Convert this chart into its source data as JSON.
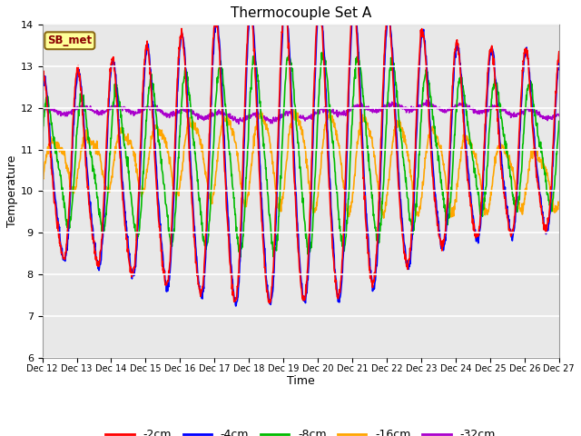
{
  "title": "Thermocouple Set A",
  "xlabel": "Time",
  "ylabel": "Temperature",
  "ylim": [
    6.0,
    14.0
  ],
  "yticks": [
    6.0,
    7.0,
    8.0,
    9.0,
    10.0,
    11.0,
    12.0,
    13.0,
    14.0
  ],
  "xlim": [
    0,
    360
  ],
  "background_color": "#e8e8e8",
  "fig_background": "#ffffff",
  "series": {
    "-2cm": {
      "color": "#ff0000",
      "lw": 1.2
    },
    "-4cm": {
      "color": "#0000ff",
      "lw": 1.2
    },
    "-8cm": {
      "color": "#00bb00",
      "lw": 1.2
    },
    "-16cm": {
      "color": "#ffa500",
      "lw": 1.2
    },
    "-32cm": {
      "color": "#aa00cc",
      "lw": 1.2
    }
  },
  "annotation_text": "SB_met",
  "annotation_color": "#8b0000",
  "annotation_bg": "#ffff99",
  "annotation_border": "#8b6914",
  "xtick_labels": [
    "Dec 12",
    "Dec 13",
    "Dec 14",
    "Dec 15",
    "Dec 16",
    "Dec 17",
    "Dec 18",
    "Dec 19",
    "Dec 20",
    "Dec 21",
    "Dec 22",
    "Dec 23",
    "Dec 24",
    "Dec 25",
    "Dec 26",
    "Dec 27"
  ],
  "xtick_positions": [
    0,
    24,
    48,
    72,
    96,
    120,
    144,
    168,
    192,
    216,
    240,
    264,
    288,
    312,
    336,
    360
  ],
  "legend_labels": [
    "-2cm",
    "-4cm",
    "-8cm",
    "-16cm",
    "-32cm"
  ],
  "legend_colors": [
    "#ff0000",
    "#0000ff",
    "#00bb00",
    "#ffa500",
    "#aa00cc"
  ]
}
